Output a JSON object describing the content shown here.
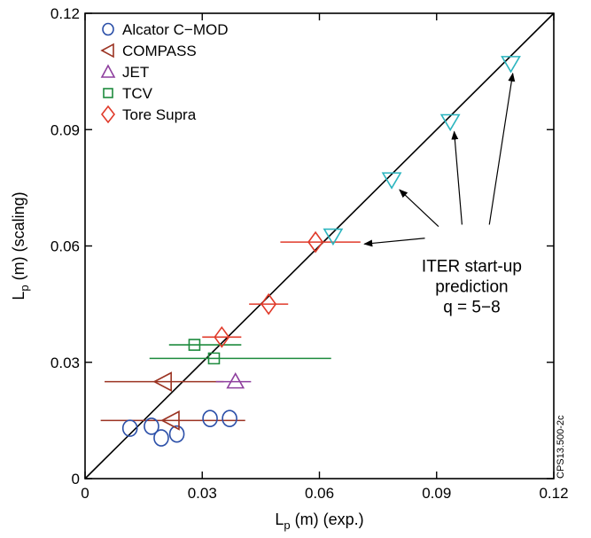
{
  "chart_data": {
    "type": "scatter",
    "xlabel": "L",
    "xlabel_sub": "p",
    "xlabel_rest": " (m) (exp.)",
    "ylabel": "L",
    "ylabel_sub": "p",
    "ylabel_rest": " (m) (scaling)",
    "xlim": [
      0,
      0.12
    ],
    "ylim": [
      0,
      0.12
    ],
    "xticks": [
      0,
      0.03,
      0.06,
      0.09,
      0.12
    ],
    "yticks": [
      0,
      0.03,
      0.06,
      0.09,
      0.12
    ],
    "xtick_labels": [
      "0",
      "0.03",
      "0.06",
      "0.09",
      "0.12"
    ],
    "ytick_labels": [
      "0",
      "0.03",
      "0.06",
      "0.09",
      "0.12"
    ],
    "identity_line": true,
    "legend_position": "top-left",
    "series": [
      {
        "name": "Alcator C−MOD",
        "marker": "circle",
        "color": "#2b4fa8",
        "points": [
          {
            "x": 0.0115,
            "y": 0.013
          },
          {
            "x": 0.017,
            "y": 0.0135
          },
          {
            "x": 0.0195,
            "y": 0.0105
          },
          {
            "x": 0.0235,
            "y": 0.0115
          },
          {
            "x": 0.032,
            "y": 0.0155
          },
          {
            "x": 0.037,
            "y": 0.0155
          }
        ]
      },
      {
        "name": "COMPASS",
        "marker": "triangle-left",
        "color": "#9b3322",
        "points": [
          {
            "x": 0.02,
            "y": 0.025,
            "xerr_low": 0.005,
            "xerr_high": 0.0355
          },
          {
            "x": 0.022,
            "y": 0.015,
            "xerr_low": 0.004,
            "xerr_high": 0.041
          }
        ]
      },
      {
        "name": "JET",
        "marker": "triangle-up",
        "color": "#8e3f9e",
        "points": [
          {
            "x": 0.0385,
            "y": 0.025,
            "xerr_low": 0.0335,
            "xerr_high": 0.0425
          }
        ]
      },
      {
        "name": "TCV",
        "marker": "square",
        "color": "#1e8b3e",
        "points": [
          {
            "x": 0.028,
            "y": 0.0345,
            "xerr_low": 0.0215,
            "xerr_high": 0.04
          },
          {
            "x": 0.033,
            "y": 0.031,
            "xerr_low": 0.0165,
            "xerr_high": 0.063
          }
        ]
      },
      {
        "name": "Tore Supra",
        "marker": "diamond",
        "color": "#e03a2a",
        "points": [
          {
            "x": 0.035,
            "y": 0.0365,
            "xerr_low": 0.03,
            "xerr_high": 0.04
          },
          {
            "x": 0.047,
            "y": 0.045,
            "xerr_low": 0.042,
            "xerr_high": 0.052
          },
          {
            "x": 0.059,
            "y": 0.061,
            "xerr_low": 0.05,
            "xerr_high": 0.0705
          }
        ]
      },
      {
        "name": "ITER start-up",
        "marker": "triangle-down",
        "color": "#2bb5bf",
        "in_legend": false,
        "points": [
          {
            "x": 0.0635,
            "y": 0.0625
          },
          {
            "x": 0.0785,
            "y": 0.077
          },
          {
            "x": 0.0935,
            "y": 0.092
          },
          {
            "x": 0.109,
            "y": 0.107
          }
        ]
      }
    ],
    "annotation": {
      "lines": [
        "ITER start-up",
        "prediction",
        "q = 5−8"
      ],
      "anchor": {
        "x": 0.099,
        "y": 0.0575
      },
      "arrows": [
        {
          "from": {
            "x": 0.087,
            "y": 0.062
          },
          "to": {
            "x": 0.0715,
            "y": 0.0605
          }
        },
        {
          "from": {
            "x": 0.0905,
            "y": 0.065
          },
          "to": {
            "x": 0.0805,
            "y": 0.0745
          }
        },
        {
          "from": {
            "x": 0.0965,
            "y": 0.0655
          },
          "to": {
            "x": 0.0945,
            "y": 0.0895
          }
        },
        {
          "from": {
            "x": 0.1035,
            "y": 0.0655
          },
          "to": {
            "x": 0.1095,
            "y": 0.1045
          }
        }
      ]
    },
    "side_label": "CPS13.500-2c"
  }
}
